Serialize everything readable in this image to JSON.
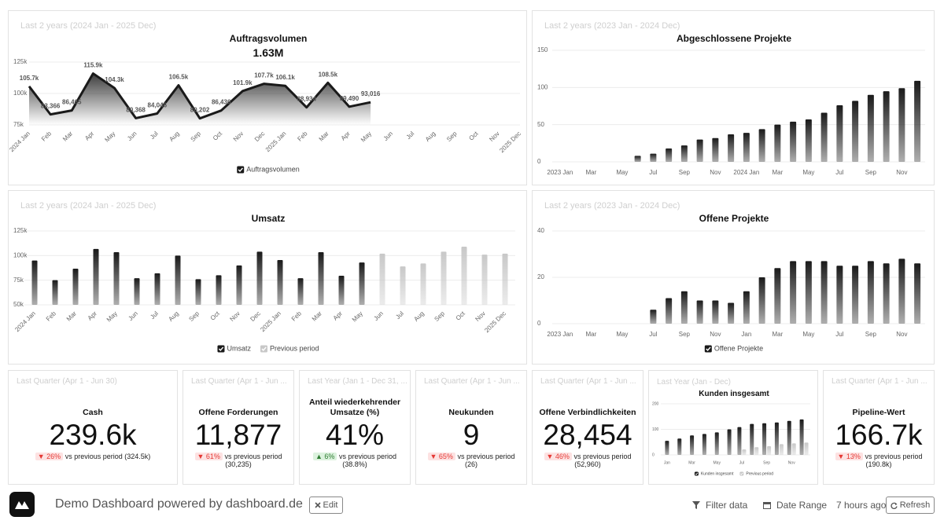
{
  "chart_data": [
    {
      "type": "line",
      "period": "Last 2 years (2024 Jan - 2025 Dec)",
      "title": "Auftragsvolumen",
      "subtitle": "1.63M",
      "categories": [
        "2024 Jan",
        "Feb",
        "Mar",
        "Apr",
        "May",
        "Jun",
        "Jul",
        "Aug",
        "Sep",
        "Oct",
        "Nov",
        "Dec",
        "2025 Jan",
        "Feb",
        "Mar",
        "Apr",
        "May",
        "Jun",
        "Jul",
        "Aug",
        "Sep",
        "Oct",
        "Nov",
        "2025 Dec"
      ],
      "series": [
        {
          "name": "Auftragsvolumen",
          "color": "#1a1a1a",
          "values": [
            105700,
            83366,
            86465,
            115900,
            104300,
            80368,
            84046,
            106500,
            80202,
            86436,
            101900,
            107700,
            106100,
            88934,
            108500,
            89490,
            93016,
            null,
            null,
            null,
            null,
            null,
            null,
            null
          ],
          "value_labels": [
            "105.7k",
            "83,366",
            "86,465",
            "115.9k",
            "104.3k",
            "80,368",
            "84,046",
            "106.5k",
            "80,202",
            "86,436",
            "101.9k",
            "107.7k",
            "106.1k",
            "88,934",
            "108.5k",
            "89,490",
            "93,016",
            null,
            null,
            null,
            null,
            null,
            null,
            null
          ]
        }
      ],
      "ylim": [
        75000,
        125000
      ],
      "yticks": [
        {
          "value": 75000,
          "label": "75k"
        },
        {
          "value": 100000,
          "label": "100k"
        },
        {
          "value": 125000,
          "label": "125k"
        }
      ],
      "grid": true,
      "legend": "bottom",
      "xtick_rotation": -45
    },
    {
      "type": "bar",
      "period": "Last 2 years (2023 Jan - 2024 Dec)",
      "title": "Abgeschlossene Projekte",
      "categories": [
        "2023 Jan",
        null,
        "Mar",
        null,
        "May",
        null,
        "Jul",
        null,
        "Sep",
        null,
        "Nov",
        null,
        "2024 Jan",
        null,
        "Mar",
        null,
        "May",
        null,
        "Jul",
        null,
        "Sep",
        null,
        "Nov",
        null
      ],
      "values": [
        null,
        null,
        null,
        null,
        null,
        8,
        11,
        18,
        22,
        30,
        32,
        37,
        39,
        44,
        50,
        54,
        57,
        66,
        76,
        82,
        90,
        95,
        99,
        109
      ],
      "color": "#1a1a1a",
      "ylim": [
        0,
        150
      ],
      "yticks": [
        0,
        50,
        100,
        150
      ],
      "grid": true
    },
    {
      "type": "bar",
      "period": "Last 2 years (2024 Jan - 2025 Dec)",
      "title": "Umsatz",
      "categories": [
        "2024 Jan",
        "Feb",
        "Mar",
        "Apr",
        "May",
        "Jun",
        "Jul",
        "Aug",
        "Sep",
        "Oct",
        "Nov",
        "Dec",
        "2025 Jan",
        "Feb",
        "Mar",
        "Apr",
        "May",
        "Jun",
        "Jul",
        "Aug",
        "Sep",
        "Oct",
        "Nov",
        "2025 Dec"
      ],
      "series": [
        {
          "name": "Umsatz",
          "color": "#1a1a1a",
          "values": [
            95000,
            75000,
            86700,
            106700,
            103500,
            77000,
            82000,
            100000,
            76000,
            80000,
            90000,
            104000,
            95500,
            77000,
            103500,
            79500,
            93000,
            null,
            null,
            null,
            null,
            null,
            null,
            null
          ]
        },
        {
          "name": "Previous period",
          "color": "#c8c8c8",
          "values": [
            null,
            null,
            null,
            null,
            null,
            null,
            null,
            null,
            null,
            null,
            null,
            null,
            null,
            null,
            null,
            null,
            null,
            102000,
            89000,
            92000,
            104000,
            109000,
            101000,
            102000
          ]
        }
      ],
      "ylim": [
        50000,
        125000
      ],
      "yticks": [
        {
          "value": 50000,
          "label": "50k"
        },
        {
          "value": 75000,
          "label": "75k"
        },
        {
          "value": 100000,
          "label": "100k"
        },
        {
          "value": 125000,
          "label": "125k"
        }
      ],
      "grid": true,
      "legend": "bottom",
      "xtick_rotation": -45
    },
    {
      "type": "bar",
      "period": "Last 2 years (2023 Jan - 2024 Dec)",
      "title": "Offene Projekte",
      "categories": [
        "2023 Jan",
        null,
        "Mar",
        null,
        "May",
        null,
        "Jul",
        null,
        "Sep",
        null,
        "Nov",
        null,
        "Jan",
        null,
        "Mar",
        null,
        "May",
        null,
        "Jul",
        null,
        "Sep",
        null,
        "Nov",
        null
      ],
      "series": [
        {
          "name": "Offene Projekte",
          "color": "#1a1a1a",
          "values": [
            null,
            null,
            null,
            null,
            null,
            null,
            6,
            11,
            14,
            10,
            10,
            9,
            14,
            20,
            24,
            27,
            27,
            27,
            25,
            25,
            27,
            26,
            28,
            26
          ]
        }
      ],
      "ylim": [
        0,
        40
      ],
      "yticks": [
        0,
        20,
        40
      ],
      "grid": true,
      "legend": "bottom"
    },
    {
      "type": "bar",
      "period": "Last Year (Jan - Dec)",
      "title": "Kunden insgesamt",
      "categories": [
        "Jan",
        null,
        "Mar",
        null,
        "May",
        null,
        "Jul",
        null,
        "Sep",
        null,
        "Nov",
        null
      ],
      "series": [
        {
          "name": "Kunden insgesamt",
          "color": "#1a1a1a",
          "values": [
            55,
            64,
            76,
            82,
            88,
            100,
            109,
            121,
            124,
            127,
            133,
            139
          ]
        },
        {
          "name": "Previous period",
          "color": "#c8c8c8",
          "values": [
            null,
            null,
            null,
            null,
            null,
            null,
            21,
            30,
            34,
            42,
            45,
            48
          ]
        }
      ],
      "ylim": [
        0,
        200
      ],
      "yticks": [
        0,
        100,
        200
      ],
      "grid": true,
      "legend": "bottom"
    }
  ],
  "kpis": [
    {
      "period": "Last Quarter (Apr 1 - Jun 30)",
      "title": "Cash",
      "value": "239.6k",
      "change": "▼ 26%",
      "comparison": "vs previous period (324.5k)",
      "change_color": "#e53935",
      "change_bg": "#fde2e2"
    },
    {
      "period": "Last Quarter (Apr 1 - Jun ...",
      "title": "Offene Forderungen",
      "value": "11,877",
      "change": "▼ 61%",
      "comparison": "vs previous period (30,235)",
      "change_color": "#e53935",
      "change_bg": "#fde2e2"
    },
    {
      "period": "Last Year (Jan 1 - Dec 31, ...",
      "title": "Anteil wiederkehrender Umsatze (%)",
      "value": "41%",
      "change": "▲ 6%",
      "comparison": "vs previous period (38.8%)",
      "change_color": "#2e7d32",
      "change_bg": "#dcf2de"
    },
    {
      "period": "Last Quarter (Apr 1 - Jun ...",
      "title": "Neukunden",
      "value": "9",
      "change": "▼ 65%",
      "comparison": "vs previous period (26)",
      "change_color": "#e53935",
      "change_bg": "#fde2e2"
    },
    {
      "period": "Last Quarter (Apr 1 - Jun ...",
      "title": "Offene Verbindlichkeiten",
      "value": "28,454",
      "change": "▼ 46%",
      "comparison": "vs previous period (52,960)",
      "change_color": "#e53935",
      "change_bg": "#fde2e2"
    },
    {
      "period": "Last Quarter (Apr 1 - Jun ...",
      "title": "Pipeline-Wert",
      "value": "166.7k",
      "change": "▼ 13%",
      "comparison": "vs previous period (190.8k)",
      "change_color": "#e53935",
      "change_bg": "#fde2e2"
    }
  ],
  "footer": {
    "title": "Demo Dashboard powered by dashboard.de",
    "edit": "Edit",
    "filter": "Filter data",
    "date_range": "Date Range",
    "updated": "7 hours ago",
    "refresh": "Refresh"
  }
}
